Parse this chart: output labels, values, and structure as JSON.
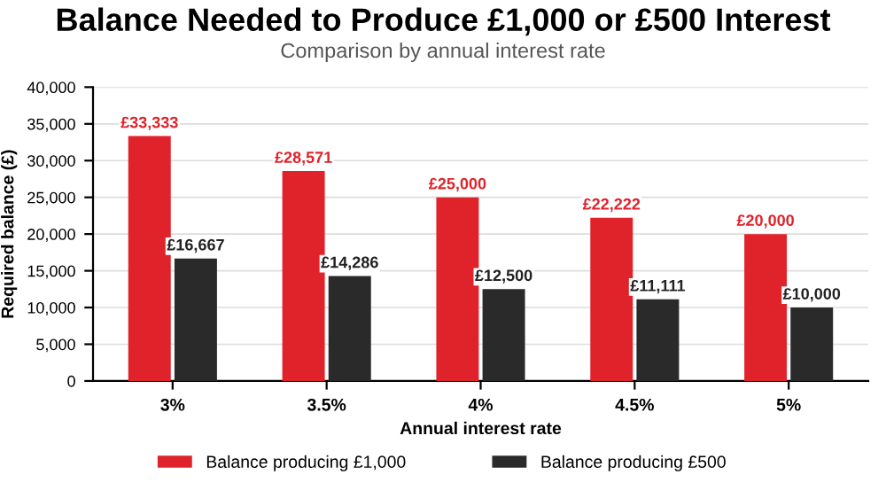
{
  "chart_data": {
    "type": "bar",
    "title": "Balance Needed to Produce £1,000 or £500 Interest",
    "subtitle": "Comparison by annual interest rate",
    "xlabel": "Annual interest rate",
    "ylabel": "Required balance (£)",
    "categories": [
      "3%",
      "3.5%",
      "4%",
      "4.5%",
      "5%"
    ],
    "series": [
      {
        "name": "Balance producing £1,000",
        "color": "#e0232b",
        "values": [
          33333,
          28571,
          25000,
          22222,
          20000
        ],
        "value_labels": [
          "£33,333",
          "£28,571",
          "£25,000",
          "£22,222",
          "£20,000"
        ]
      },
      {
        "name": "Balance producing £500",
        "color": "#2a2a2a",
        "values": [
          16667,
          14286,
          12500,
          11111,
          10000
        ],
        "value_labels": [
          "£16,667",
          "£14,286",
          "£12,500",
          "£11,111",
          "£10,000"
        ]
      }
    ],
    "ylim": [
      0,
      40000
    ],
    "yticks": [
      0,
      {
        "value": 5000,
        "label": "5,000"
      },
      {
        "value": 10000,
        "label": "10,000"
      },
      {
        "value": 15000,
        "label": "15,000"
      },
      {
        "value": 20000,
        "label": "20,000"
      },
      {
        "value": 25000,
        "label": "25,000"
      },
      {
        "value": 30000,
        "label": "30,000"
      },
      {
        "value": 35000,
        "label": "35,000"
      },
      {
        "value": 40000,
        "label": "40,000"
      }
    ],
    "grid": "y",
    "legend": "bottom"
  }
}
